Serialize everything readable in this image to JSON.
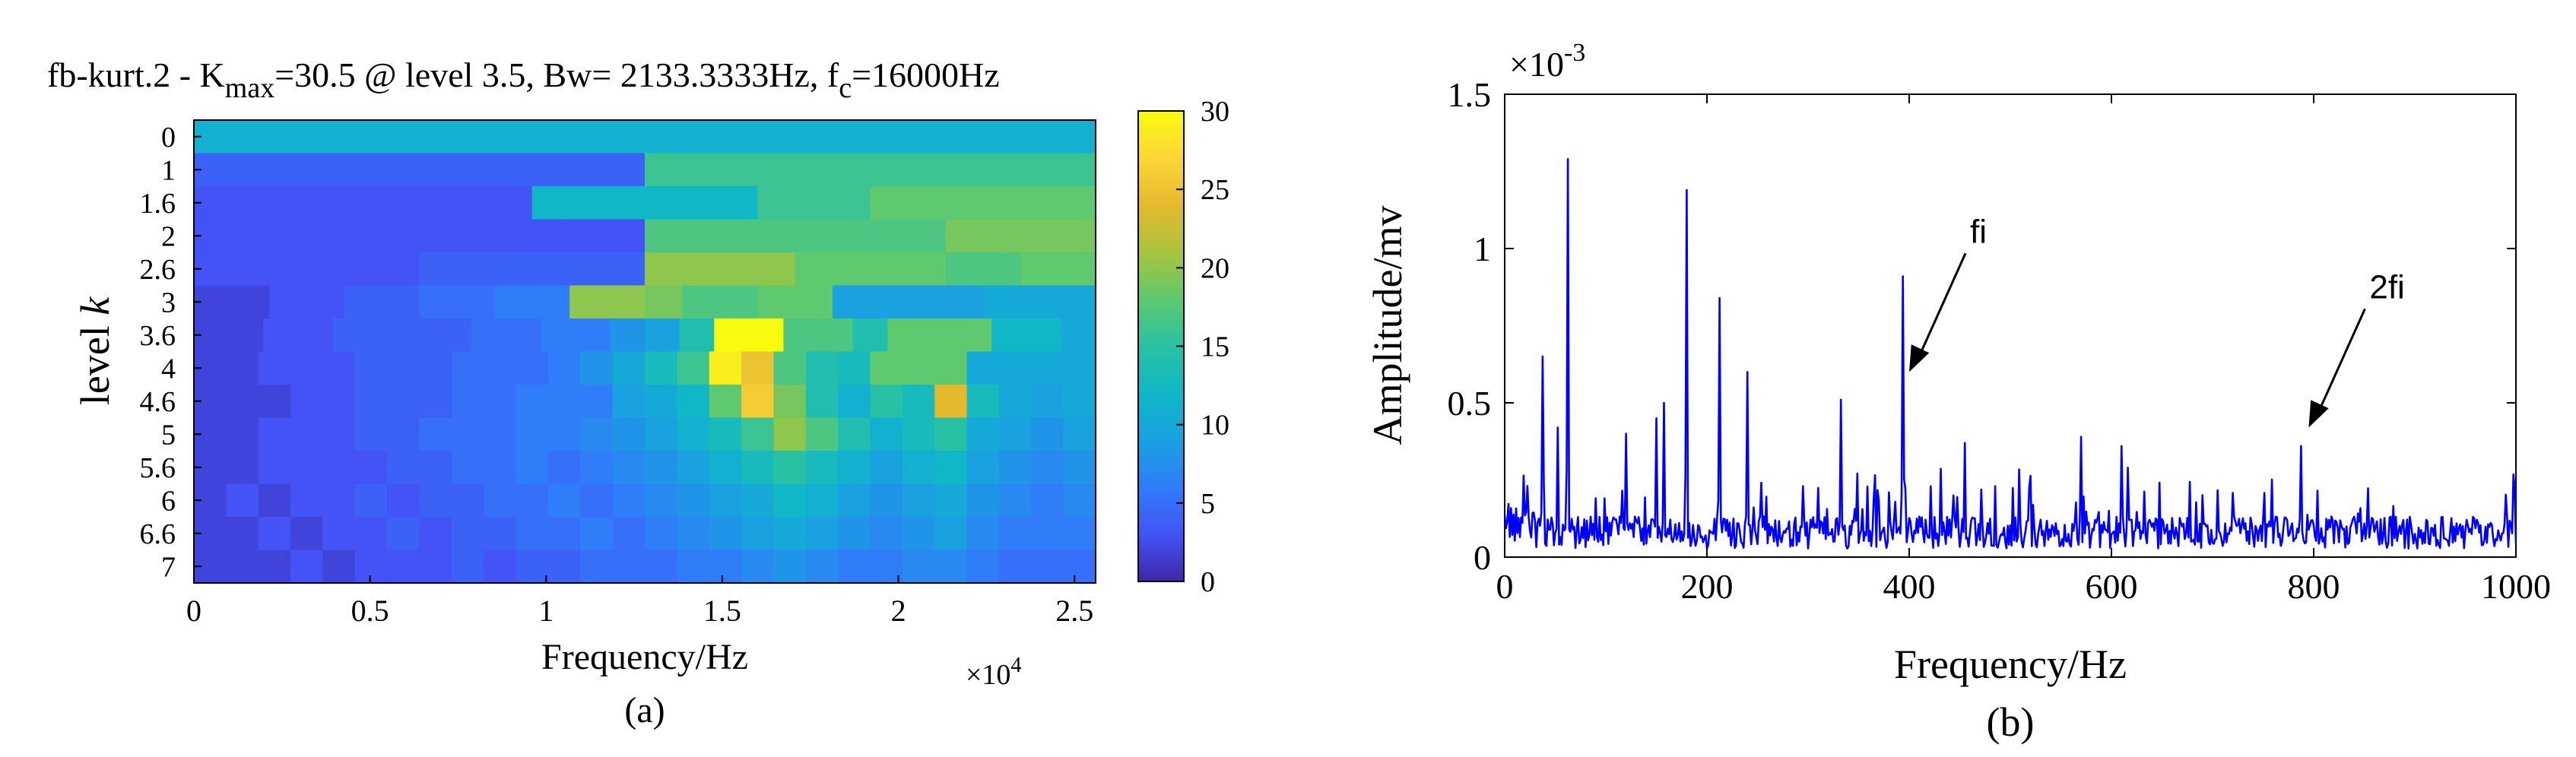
{
  "chart_data": [
    {
      "type": "heatmap",
      "panel_label": "(a)",
      "title": {
        "prefix": "fb-kurt.2 - K",
        "kmax_sub": "max",
        "middle": "=30.5 @ level 3.5, Bw= 2133.3333Hz, f",
        "fc_sub": "c",
        "suffix": "=16000Hz"
      },
      "xlabel": "Frequency/Hz",
      "ylabel_prefix": "level ",
      "ylabel_var": "k",
      "x_multiplier": {
        "base": "×10",
        "exp": "4"
      },
      "xlim": [
        0,
        2.56
      ],
      "x_ticks": [
        0,
        0.5,
        1,
        1.5,
        2,
        2.5
      ],
      "x_tick_labels": [
        "0",
        "0.5",
        "1",
        "1.5",
        "2",
        "2.5"
      ],
      "levels": [
        "0",
        "1",
        "1.6",
        "2",
        "2.6",
        "3",
        "3.6",
        "4",
        "4.6",
        "5",
        "5.6",
        "6",
        "6.6",
        "7"
      ],
      "colorbar": {
        "min": 0,
        "max": 30,
        "ticks": [
          0,
          5,
          10,
          15,
          20,
          25,
          30
        ],
        "colormap": "parula"
      },
      "kmax": 30.5,
      "rows": [
        [
          11
        ],
        [
          4,
          4,
          16,
          16
        ],
        [
          3,
          3,
          3,
          12,
          12,
          16,
          18,
          18
        ],
        [
          3,
          3,
          3,
          3,
          3,
          3,
          17,
          17,
          17,
          17,
          19,
          19
        ],
        [
          3,
          3,
          3,
          4,
          4,
          4,
          20,
          20,
          18,
          18,
          17,
          18
        ],
        [
          2,
          2,
          3,
          3,
          4,
          4,
          5,
          5,
          6,
          6,
          20,
          20,
          19,
          17,
          17,
          18,
          18,
          9,
          9,
          9,
          9,
          10,
          10,
          10
        ],
        [
          2,
          2,
          3,
          3,
          4,
          4,
          4,
          4,
          5,
          5,
          6,
          6,
          8,
          9,
          14,
          30,
          30,
          17,
          17,
          14,
          18,
          18,
          18,
          12,
          12,
          10
        ],
        [
          2,
          2,
          3,
          3,
          3,
          4,
          4,
          4,
          5,
          5,
          5,
          6,
          8,
          10,
          13,
          16,
          29,
          25,
          17,
          14,
          13,
          18,
          18,
          18,
          10,
          10,
          10,
          10
        ],
        [
          2,
          2,
          2,
          3,
          3,
          4,
          4,
          4,
          5,
          5,
          6,
          6,
          6,
          9,
          10,
          12,
          18,
          26,
          19,
          14,
          11,
          15,
          13,
          24,
          13,
          10,
          9,
          10
        ],
        [
          2,
          2,
          3,
          3,
          3,
          4,
          4,
          5,
          5,
          5,
          6,
          6,
          7,
          8,
          9,
          11,
          13,
          16,
          20,
          17,
          14,
          11,
          13,
          15,
          10,
          9,
          8,
          9
        ],
        [
          2,
          2,
          3,
          3,
          3,
          3,
          4,
          4,
          5,
          5,
          6,
          5,
          6,
          7,
          8,
          9,
          11,
          13,
          15,
          13,
          11,
          9,
          11,
          12,
          9,
          8,
          7,
          8
        ],
        [
          2,
          3,
          2,
          3,
          3,
          4,
          3,
          4,
          4,
          5,
          5,
          6,
          5,
          6,
          7,
          8,
          9,
          10,
          12,
          11,
          9,
          8,
          9,
          10,
          8,
          7,
          6,
          7
        ],
        [
          2,
          2,
          3,
          2,
          3,
          3,
          4,
          3,
          4,
          4,
          5,
          5,
          6,
          5,
          6,
          7,
          8,
          9,
          10,
          9,
          8,
          7,
          8,
          9,
          7,
          6,
          6,
          6
        ],
        [
          2,
          2,
          2,
          3,
          2,
          3,
          3,
          3,
          4,
          3,
          4,
          4,
          5,
          5,
          5,
          6,
          6,
          7,
          8,
          7,
          6,
          6,
          7,
          7,
          6,
          5,
          5,
          5
        ]
      ]
    },
    {
      "type": "line",
      "panel_label": "(b)",
      "xlabel": "Frequency/Hz",
      "ylabel": "Amplitude/mv",
      "y_multiplier": {
        "base": "×10",
        "exp": "-3"
      },
      "xlim": [
        0,
        1000
      ],
      "ylim": [
        0,
        1.5
      ],
      "x_ticks": [
        0,
        200,
        400,
        600,
        800,
        1000
      ],
      "x_tick_labels": [
        "0",
        "200",
        "400",
        "600",
        "800",
        "1000"
      ],
      "y_ticks": [
        0,
        0.5,
        1,
        1.5
      ],
      "y_tick_labels": [
        "0",
        "0.5",
        "1",
        "1.5"
      ],
      "line_color": "#0000ff",
      "noise_level": 0.11,
      "peaks": [
        {
          "x": 38,
          "y": 0.65
        },
        {
          "x": 52,
          "y": 0.42
        },
        {
          "x": 63,
          "y": 1.29
        },
        {
          "x": 120,
          "y": 0.4
        },
        {
          "x": 150,
          "y": 0.45
        },
        {
          "x": 158,
          "y": 0.5
        },
        {
          "x": 180,
          "y": 1.19
        },
        {
          "x": 212,
          "y": 0.84
        },
        {
          "x": 240,
          "y": 0.6
        },
        {
          "x": 333,
          "y": 0.51
        },
        {
          "x": 394,
          "y": 0.91
        },
        {
          "x": 455,
          "y": 0.37
        },
        {
          "x": 570,
          "y": 0.39
        },
        {
          "x": 610,
          "y": 0.36
        },
        {
          "x": 787,
          "y": 0.36
        }
      ],
      "annotations": [
        {
          "text": "fi",
          "x": 400,
          "y": 0.6
        },
        {
          "text": "2fi",
          "x": 795,
          "y": 0.42
        }
      ]
    }
  ]
}
